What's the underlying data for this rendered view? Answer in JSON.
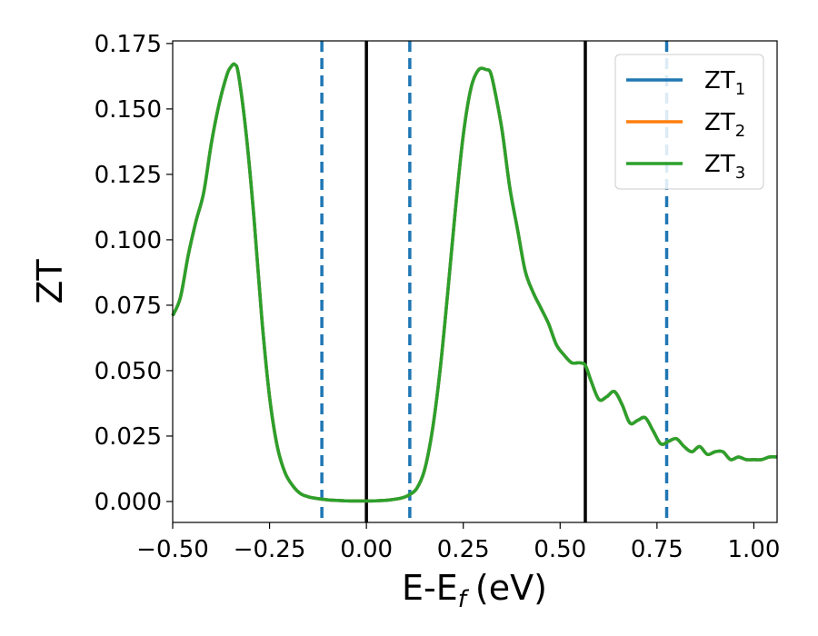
{
  "chart_data": {
    "type": "line",
    "xlabel": "E-E",
    "xlabel_sub": "f",
    "xlabel_unit": "(eV)",
    "ylabel": "ZT",
    "xlim": [
      -0.5,
      1.06
    ],
    "ylim": [
      -0.008,
      0.176
    ],
    "xticks": [
      -0.5,
      -0.25,
      0.0,
      0.25,
      0.5,
      0.75,
      1.0
    ],
    "xtick_labels": [
      "−0.50",
      "−0.25",
      "0.00",
      "0.25",
      "0.50",
      "0.75",
      "1.00"
    ],
    "yticks": [
      0.0,
      0.025,
      0.05,
      0.075,
      0.1,
      0.125,
      0.15,
      0.175
    ],
    "ytick_labels": [
      "0.000",
      "0.025",
      "0.050",
      "0.075",
      "0.100",
      "0.125",
      "0.150",
      "0.175"
    ],
    "grid": false,
    "legend_position": "top-right",
    "vlines_solid": [
      0.0,
      0.565
    ],
    "vlines_dashed": [
      -0.115,
      0.112,
      0.775
    ],
    "colors": {
      "ZT1": "#1f77b4",
      "ZT2": "#ff7f0e",
      "ZT3": "#2ca02c",
      "solid": "#000000",
      "dashed": "#1f77b4"
    },
    "x": [
      -0.5,
      -0.48,
      -0.46,
      -0.44,
      -0.42,
      -0.4,
      -0.38,
      -0.36,
      -0.35,
      -0.34,
      -0.33,
      -0.31,
      -0.29,
      -0.27,
      -0.25,
      -0.23,
      -0.21,
      -0.19,
      -0.17,
      -0.15,
      -0.13,
      -0.11,
      -0.09,
      -0.06,
      -0.03,
      0.0,
      0.03,
      0.06,
      0.09,
      0.11,
      0.13,
      0.15,
      0.17,
      0.19,
      0.21,
      0.23,
      0.25,
      0.27,
      0.29,
      0.31,
      0.32,
      0.33,
      0.35,
      0.37,
      0.39,
      0.41,
      0.43,
      0.45,
      0.47,
      0.49,
      0.51,
      0.53,
      0.55,
      0.565,
      0.58,
      0.6,
      0.62,
      0.64,
      0.66,
      0.68,
      0.7,
      0.72,
      0.74,
      0.76,
      0.78,
      0.8,
      0.82,
      0.84,
      0.86,
      0.88,
      0.9,
      0.92,
      0.94,
      0.96,
      0.98,
      1.0,
      1.02,
      1.04,
      1.06
    ],
    "series": [
      {
        "name": "ZT₁",
        "label": "ZT",
        "sub": "1",
        "values": [
          0.071,
          0.078,
          0.094,
          0.107,
          0.118,
          0.137,
          0.152,
          0.163,
          0.166,
          0.167,
          0.163,
          0.14,
          0.108,
          0.07,
          0.04,
          0.021,
          0.011,
          0.006,
          0.003,
          0.0018,
          0.0012,
          0.0008,
          0.0005,
          0.0003,
          0.0002,
          0.0002,
          0.0003,
          0.0006,
          0.0013,
          0.0025,
          0.005,
          0.012,
          0.027,
          0.05,
          0.08,
          0.112,
          0.14,
          0.158,
          0.165,
          0.165,
          0.164,
          0.158,
          0.142,
          0.12,
          0.104,
          0.088,
          0.08,
          0.074,
          0.068,
          0.06,
          0.056,
          0.053,
          0.053,
          0.052,
          0.046,
          0.039,
          0.04,
          0.042,
          0.037,
          0.03,
          0.031,
          0.032,
          0.027,
          0.022,
          0.023,
          0.024,
          0.021,
          0.019,
          0.021,
          0.018,
          0.019,
          0.019,
          0.016,
          0.017,
          0.016,
          0.016,
          0.016,
          0.017,
          0.017
        ]
      },
      {
        "name": "ZT₂",
        "label": "ZT",
        "sub": "2",
        "values": [
          0.071,
          0.078,
          0.094,
          0.107,
          0.118,
          0.137,
          0.152,
          0.163,
          0.166,
          0.167,
          0.163,
          0.14,
          0.108,
          0.07,
          0.04,
          0.021,
          0.011,
          0.006,
          0.003,
          0.0018,
          0.0012,
          0.0008,
          0.0005,
          0.0003,
          0.0002,
          0.0002,
          0.0003,
          0.0006,
          0.0013,
          0.0025,
          0.005,
          0.012,
          0.027,
          0.05,
          0.08,
          0.112,
          0.14,
          0.158,
          0.165,
          0.165,
          0.164,
          0.158,
          0.142,
          0.12,
          0.104,
          0.088,
          0.08,
          0.074,
          0.068,
          0.06,
          0.056,
          0.053,
          0.053,
          0.052,
          0.046,
          0.039,
          0.04,
          0.042,
          0.037,
          0.03,
          0.031,
          0.032,
          0.027,
          0.022,
          0.023,
          0.024,
          0.021,
          0.019,
          0.021,
          0.018,
          0.019,
          0.019,
          0.016,
          0.017,
          0.016,
          0.016,
          0.016,
          0.017,
          0.017
        ]
      },
      {
        "name": "ZT₃",
        "label": "ZT",
        "sub": "3",
        "values": [
          0.071,
          0.078,
          0.094,
          0.107,
          0.118,
          0.137,
          0.152,
          0.163,
          0.166,
          0.167,
          0.163,
          0.14,
          0.108,
          0.07,
          0.04,
          0.021,
          0.011,
          0.006,
          0.003,
          0.0018,
          0.0012,
          0.0008,
          0.0005,
          0.0003,
          0.0002,
          0.0002,
          0.0003,
          0.0006,
          0.0013,
          0.0025,
          0.005,
          0.012,
          0.027,
          0.05,
          0.08,
          0.112,
          0.14,
          0.158,
          0.165,
          0.165,
          0.164,
          0.158,
          0.142,
          0.12,
          0.104,
          0.088,
          0.08,
          0.074,
          0.068,
          0.06,
          0.056,
          0.053,
          0.053,
          0.052,
          0.046,
          0.039,
          0.04,
          0.042,
          0.037,
          0.03,
          0.031,
          0.032,
          0.027,
          0.022,
          0.023,
          0.024,
          0.021,
          0.019,
          0.021,
          0.018,
          0.019,
          0.019,
          0.016,
          0.017,
          0.016,
          0.016,
          0.016,
          0.017,
          0.017
        ]
      }
    ]
  }
}
